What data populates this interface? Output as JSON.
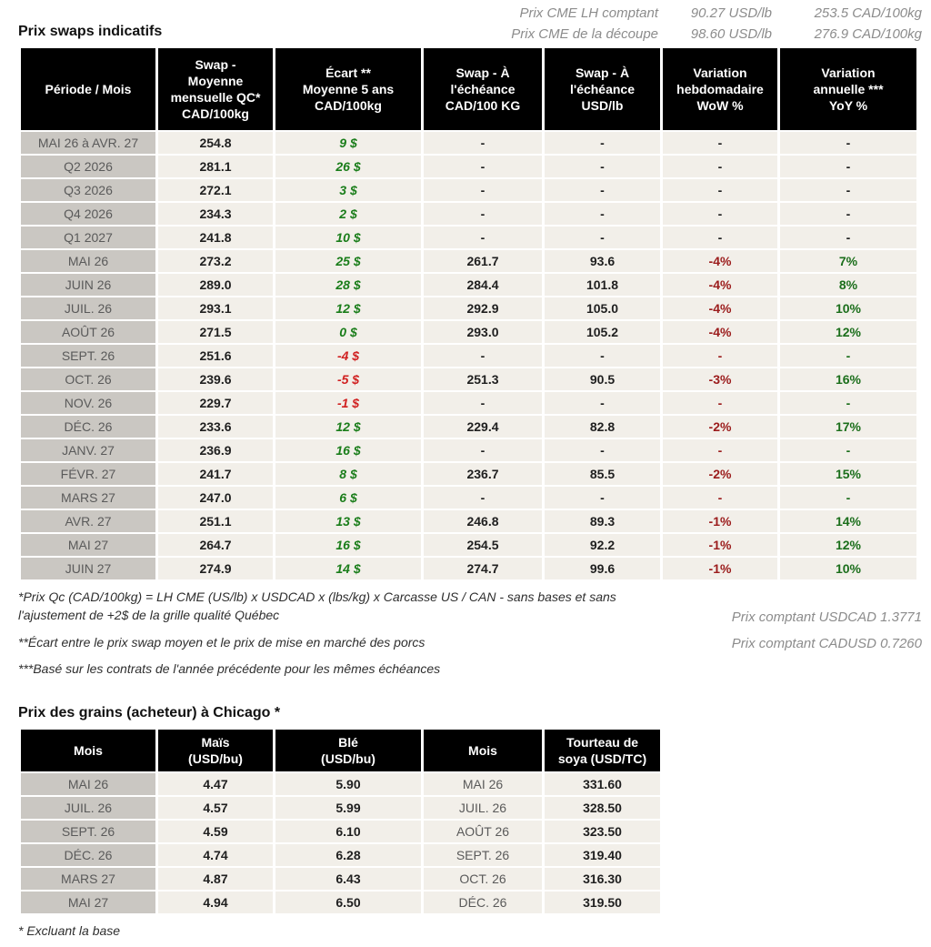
{
  "colors": {
    "header_bg": "#000000",
    "label_bg": "#cac7c2",
    "cell_bg": "#f2efe9",
    "month_text": "#5a5a5a",
    "data_text": "#1f1f1f",
    "ecart_pos": "#1a7d1a",
    "ecart_neg": "#d02020",
    "wow_red": "#9b1c1c",
    "yoy_green": "#1b6e1b",
    "note_gray": "#8c8c8c"
  },
  "quotes": {
    "rows": [
      {
        "label": "Prix CME LH comptant",
        "usd": "90.27 USD/lb",
        "cad": "253.5 CAD/100kg"
      },
      {
        "label": "Prix CME de la découpe",
        "usd": "98.60 USD/lb",
        "cad": "276.9 CAD/100kg"
      }
    ]
  },
  "swaps": {
    "title": "Prix swaps indicatifs",
    "columns": [
      "Période / Mois",
      "Swap -\nMoyenne\nmensuelle QC*\nCAD/100kg",
      "Écart **\nMoyenne 5 ans\nCAD/100kg",
      "Swap - À\nl'échéance\nCAD/100 KG",
      "Swap - À\nl'échéance\nUSD/lb",
      "Variation\nhebdomadaire\nWoW %",
      "Variation\nannuelle ***\nYoY %"
    ],
    "rows": [
      {
        "period": "MAI 26 à  AVR. 27",
        "swap_avg": "254.8",
        "ecart": "9 $",
        "ecart_class": "pos",
        "swap_maturity_cad": "-",
        "swap_maturity_usd": "-",
        "wow": "-",
        "wow_class": "plain",
        "yoy": "-",
        "yoy_class": "plain"
      },
      {
        "period": "Q2 2026",
        "swap_avg": "281.1",
        "ecart": "26 $",
        "ecart_class": "pos",
        "swap_maturity_cad": "-",
        "swap_maturity_usd": "-",
        "wow": "-",
        "wow_class": "plain",
        "yoy": "-",
        "yoy_class": "plain"
      },
      {
        "period": "Q3 2026",
        "swap_avg": "272.1",
        "ecart": "3 $",
        "ecart_class": "pos",
        "swap_maturity_cad": "-",
        "swap_maturity_usd": "-",
        "wow": "-",
        "wow_class": "plain",
        "yoy": "-",
        "yoy_class": "plain"
      },
      {
        "period": "Q4 2026",
        "swap_avg": "234.3",
        "ecart": "2 $",
        "ecart_class": "pos",
        "swap_maturity_cad": "-",
        "swap_maturity_usd": "-",
        "wow": "-",
        "wow_class": "plain",
        "yoy": "-",
        "yoy_class": "plain"
      },
      {
        "period": "Q1 2027",
        "swap_avg": "241.8",
        "ecart": "10 $",
        "ecart_class": "pos",
        "swap_maturity_cad": "-",
        "swap_maturity_usd": "-",
        "wow": "-",
        "wow_class": "plain",
        "yoy": "-",
        "yoy_class": "plain"
      },
      {
        "period": "MAI 26",
        "swap_avg": "273.2",
        "ecart": "25 $",
        "ecart_class": "pos",
        "swap_maturity_cad": "261.7",
        "swap_maturity_usd": "93.6",
        "wow": "-4%",
        "wow_class": "neg",
        "yoy": "7%",
        "yoy_class": "pos"
      },
      {
        "period": "JUIN 26",
        "swap_avg": "289.0",
        "ecart": "28 $",
        "ecart_class": "pos",
        "swap_maturity_cad": "284.4",
        "swap_maturity_usd": "101.8",
        "wow": "-4%",
        "wow_class": "neg",
        "yoy": "8%",
        "yoy_class": "pos"
      },
      {
        "period": "JUIL. 26",
        "swap_avg": "293.1",
        "ecart": "12 $",
        "ecart_class": "pos",
        "swap_maturity_cad": "292.9",
        "swap_maturity_usd": "105.0",
        "wow": "-4%",
        "wow_class": "neg",
        "yoy": "10%",
        "yoy_class": "pos"
      },
      {
        "period": "AOÛT 26",
        "swap_avg": "271.5",
        "ecart": "0 $",
        "ecart_class": "pos",
        "swap_maturity_cad": "293.0",
        "swap_maturity_usd": "105.2",
        "wow": "-4%",
        "wow_class": "neg",
        "yoy": "12%",
        "yoy_class": "pos"
      },
      {
        "period": "SEPT. 26",
        "swap_avg": "251.6",
        "ecart": "-4 $",
        "ecart_class": "neg",
        "swap_maturity_cad": "-",
        "swap_maturity_usd": "-",
        "wow": "-",
        "wow_class": "neg",
        "yoy": "-",
        "yoy_class": "pos"
      },
      {
        "period": "OCT. 26",
        "swap_avg": "239.6",
        "ecart": "-5 $",
        "ecart_class": "neg",
        "swap_maturity_cad": "251.3",
        "swap_maturity_usd": "90.5",
        "wow": "-3%",
        "wow_class": "neg",
        "yoy": "16%",
        "yoy_class": "pos"
      },
      {
        "period": "NOV. 26",
        "swap_avg": "229.7",
        "ecart": "-1 $",
        "ecart_class": "neg",
        "swap_maturity_cad": "-",
        "swap_maturity_usd": "-",
        "wow": "-",
        "wow_class": "neg",
        "yoy": "-",
        "yoy_class": "pos"
      },
      {
        "period": "DÉC. 26",
        "swap_avg": "233.6",
        "ecart": "12 $",
        "ecart_class": "pos",
        "swap_maturity_cad": "229.4",
        "swap_maturity_usd": "82.8",
        "wow": "-2%",
        "wow_class": "neg",
        "yoy": "17%",
        "yoy_class": "pos"
      },
      {
        "period": "JANV. 27",
        "swap_avg": "236.9",
        "ecart": "16 $",
        "ecart_class": "pos",
        "swap_maturity_cad": "-",
        "swap_maturity_usd": "-",
        "wow": "-",
        "wow_class": "neg",
        "yoy": "-",
        "yoy_class": "pos"
      },
      {
        "period": "FÉVR. 27",
        "swap_avg": "241.7",
        "ecart": "8 $",
        "ecart_class": "pos",
        "swap_maturity_cad": "236.7",
        "swap_maturity_usd": "85.5",
        "wow": "-2%",
        "wow_class": "neg",
        "yoy": "15%",
        "yoy_class": "pos"
      },
      {
        "period": "MARS 27",
        "swap_avg": "247.0",
        "ecart": "6 $",
        "ecart_class": "pos",
        "swap_maturity_cad": "-",
        "swap_maturity_usd": "-",
        "wow": "-",
        "wow_class": "neg",
        "yoy": "-",
        "yoy_class": "pos"
      },
      {
        "period": "AVR. 27",
        "swap_avg": "251.1",
        "ecart": "13 $",
        "ecart_class": "pos",
        "swap_maturity_cad": "246.8",
        "swap_maturity_usd": "89.3",
        "wow": "-1%",
        "wow_class": "neg",
        "yoy": "14%",
        "yoy_class": "pos"
      },
      {
        "period": "MAI 27",
        "swap_avg": "264.7",
        "ecart": "16 $",
        "ecart_class": "pos",
        "swap_maturity_cad": "254.5",
        "swap_maturity_usd": "92.2",
        "wow": "-1%",
        "wow_class": "neg",
        "yoy": "12%",
        "yoy_class": "pos"
      },
      {
        "period": "JUIN 27",
        "swap_avg": "274.9",
        "ecart": "14 $",
        "ecart_class": "pos",
        "swap_maturity_cad": "274.7",
        "swap_maturity_usd": "99.6",
        "wow": "-1%",
        "wow_class": "neg",
        "yoy": "10%",
        "yoy_class": "pos"
      }
    ],
    "footnotes": {
      "note1": "*Prix Qc (CAD/100kg) = LH CME (US/lb) x USDCAD x (lbs/kg) x Carcasse US / CAN - sans bases et sans l'ajustement de +2$ de la grille qualité Québec",
      "note2": "**Écart entre le prix swap moyen et le prix de mise en marché des porcs",
      "note3": "***Basé sur les contrats de l'année précédente pour les mêmes échéances",
      "spot_usdcad": "Prix comptant USDCAD 1.3771",
      "spot_cadusd": "Prix comptant CADUSD 0.7260"
    }
  },
  "grains": {
    "title": "Prix des grains (acheteur) à Chicago *",
    "columns": [
      "Mois",
      "Maïs\n(USD/bu)",
      "Blé\n(USD/bu)",
      "Mois",
      "Tourteau de\nsoya (USD/TC)"
    ],
    "rows": [
      {
        "month": "MAI 26",
        "corn": "4.47",
        "wheat": "5.90",
        "month2": "MAI 26",
        "soymeal": "331.60"
      },
      {
        "month": "JUIL. 26",
        "corn": "4.57",
        "wheat": "5.99",
        "month2": "JUIL. 26",
        "soymeal": "328.50"
      },
      {
        "month": "SEPT. 26",
        "corn": "4.59",
        "wheat": "6.10",
        "month2": "AOÛT 26",
        "soymeal": "323.50"
      },
      {
        "month": "DÉC. 26",
        "corn": "4.74",
        "wheat": "6.28",
        "month2": "SEPT. 26",
        "soymeal": "319.40"
      },
      {
        "month": "MARS 27",
        "corn": "4.87",
        "wheat": "6.43",
        "month2": "OCT. 26",
        "soymeal": "316.30"
      },
      {
        "month": "MAI 27",
        "corn": "4.94",
        "wheat": "6.50",
        "month2": "DÉC. 26",
        "soymeal": "319.50"
      }
    ],
    "footnote": "* Excluant la base"
  }
}
